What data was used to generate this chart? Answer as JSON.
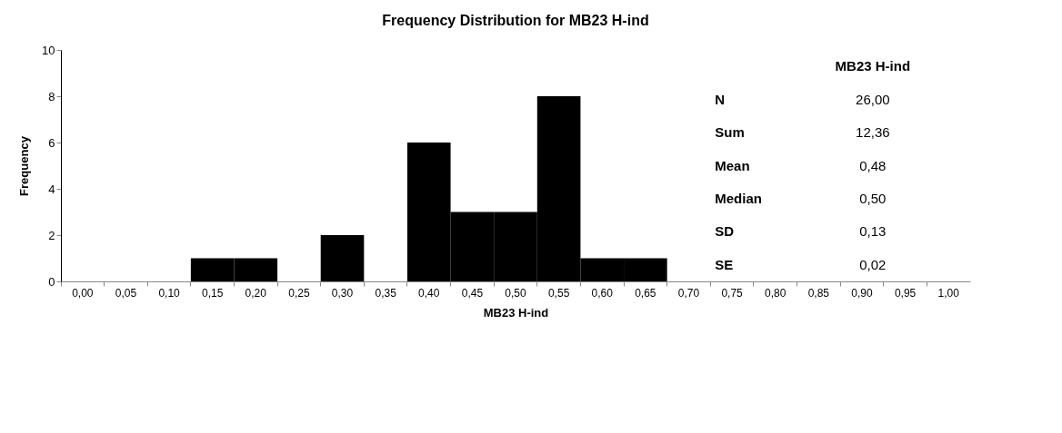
{
  "chart_data": {
    "type": "bar",
    "title": "Frequency Distribution for MB23 H-ind",
    "xlabel": "MB23 H-ind",
    "ylabel": "Frequency",
    "categories": [
      "0,00",
      "0,05",
      "0,10",
      "0,15",
      "0,20",
      "0,25",
      "0,30",
      "0,35",
      "0,40",
      "0,45",
      "0,50",
      "0,55",
      "0,60",
      "0,65",
      "0,70",
      "0,75",
      "0,80",
      "0,85",
      "0,90",
      "0,95",
      "1,00"
    ],
    "values": [
      0,
      0,
      0,
      1,
      1,
      0,
      2,
      0,
      6,
      3,
      3,
      8,
      1,
      1,
      0,
      0,
      0,
      0,
      0,
      0,
      0
    ],
    "color": "#000000",
    "ylim": [
      0,
      10
    ],
    "yticks": [
      0,
      2,
      4,
      6,
      8,
      10
    ],
    "grid": false,
    "annotations": [
      "MB23 H-ind",
      "N",
      "26,00",
      "Sum",
      "12,36",
      "Mean",
      "0,48",
      "Median",
      "0,50",
      "SD",
      "0,13",
      "SE",
      "0,02"
    ]
  }
}
